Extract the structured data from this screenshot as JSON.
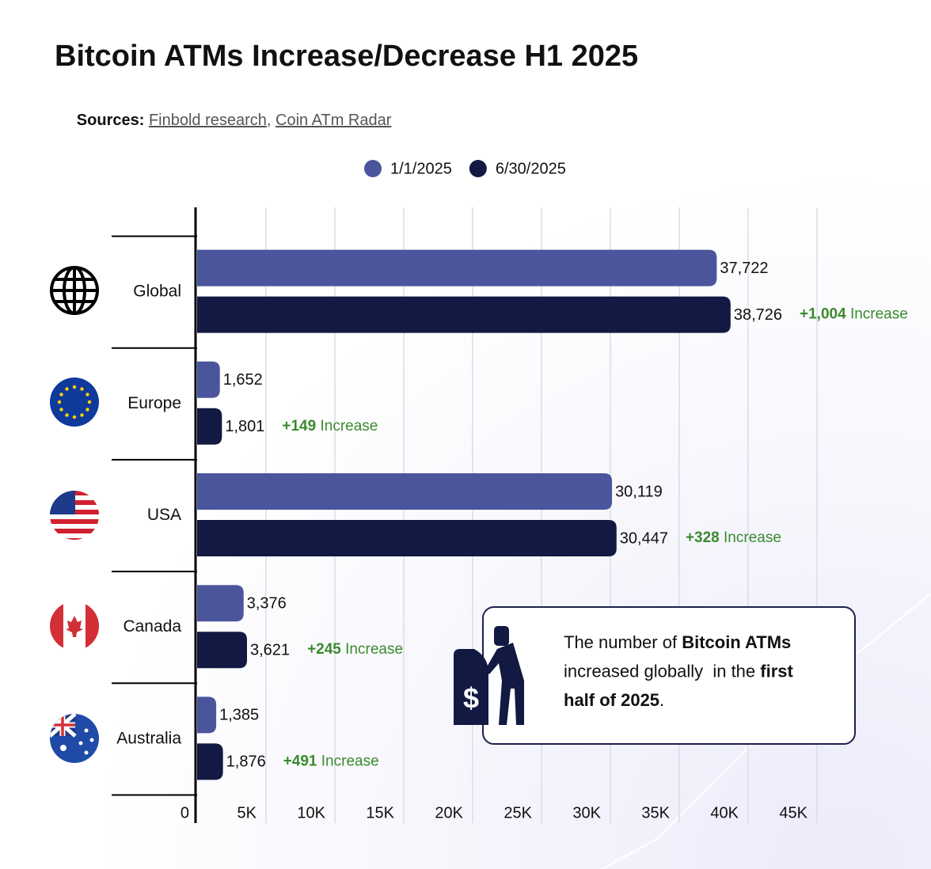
{
  "chart_data": {
    "type": "bar",
    "orientation": "horizontal",
    "title": "Bitcoin ATMs Increase/Decrease H1 2025",
    "sources_label": "Sources:",
    "sources": [
      "Finbold research",
      "Coin ATm Radar"
    ],
    "sources_separator": ",",
    "categories": [
      "Global",
      "Europe",
      "USA",
      "Canada",
      "Australia"
    ],
    "series": [
      {
        "name": "1/1/2025",
        "color": "#4b559c",
        "values": [
          37722,
          1652,
          30119,
          3376,
          1385
        ],
        "value_labels": [
          "37,722",
          "1,652",
          "30,119",
          "3,376",
          "1,385"
        ]
      },
      {
        "name": "6/30/2025",
        "color": "#121942",
        "values": [
          38726,
          1801,
          30447,
          3621,
          1876
        ],
        "value_labels": [
          "38,726",
          "1,801",
          "30,447",
          "3,621",
          "1,876"
        ]
      }
    ],
    "change_labels": [
      "+1,004",
      "+149",
      "+328",
      "+245",
      "+491"
    ],
    "change_word": "Increase",
    "change_color": "#3a8a2e",
    "xlim": [
      0,
      45000
    ],
    "xticks": [
      0,
      {
        "value": 5000,
        "label": "5K"
      },
      {
        "value": 10000,
        "label": "10K"
      },
      {
        "value": 15000,
        "label": "15K"
      },
      {
        "value": 20000,
        "label": "20K"
      },
      {
        "value": 25000,
        "label": "25K"
      },
      {
        "value": 30000,
        "label": "30K"
      },
      {
        "value": 35000,
        "label": "35K"
      },
      {
        "value": 40000,
        "label": "40K"
      },
      {
        "value": 45000,
        "label": "45K"
      }
    ],
    "grid": true,
    "callout": {
      "lines": [
        [
          {
            "text": "The number of ",
            "bold": false
          },
          {
            "text": "Bitcoin ATMs",
            "bold": true
          }
        ],
        [
          {
            "text": "increased globally  in the ",
            "bold": false
          },
          {
            "text": "first",
            "bold": true
          }
        ],
        [
          {
            "text": "half of 2025",
            "bold": true
          },
          {
            "text": ".",
            "bold": false
          }
        ]
      ]
    }
  }
}
